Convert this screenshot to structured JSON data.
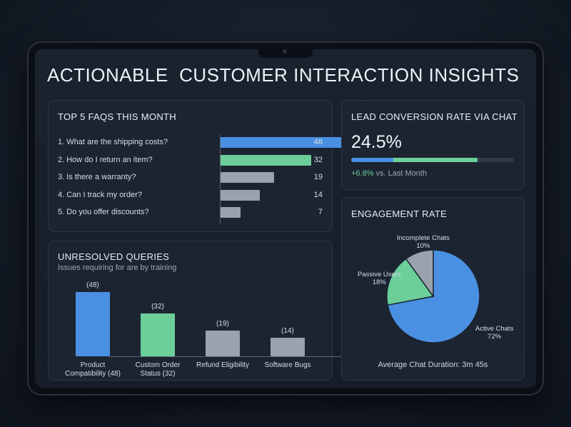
{
  "title": "ACTIONABLE  CUSTOMER INTERACTION INSIGHTS",
  "colors": {
    "blue": "#4a90e2",
    "green": "#6ccf9a",
    "gray": "#9aa3ad",
    "card_bg": "#1c2431"
  },
  "faq": {
    "title": "TOP 5 FAQS THIS MONTH",
    "items": [
      {
        "label": "1.  What are the shipping costs?",
        "value": "48",
        "color": "blue"
      },
      {
        "label": "2.  How do I return an item?",
        "value": "32",
        "color": "green"
      },
      {
        "label": "3.  Is there a warranty?",
        "value": "19",
        "color": "gray"
      },
      {
        "label": "4.  Can I track my order?",
        "value": "14",
        "color": "gray"
      },
      {
        "label": "5.  Do you offer discounts?",
        "value": "7",
        "color": "gray"
      }
    ]
  },
  "lead": {
    "title": "LEAD CONVERSION RATE VIA CHAT",
    "value": "24.5%",
    "change": "+6.8%",
    "change_suffix": " vs. Last Month"
  },
  "unresolved": {
    "title": "UNRESOLVED QUERIES",
    "subtitle": "Issues requiring for are by training",
    "items": [
      {
        "category": "Product\nCompatibility (48)",
        "value_label": "(48)",
        "value": 48,
        "color": "blue"
      },
      {
        "category": "Custom Order\nStatus (32)",
        "value_label": "(32)",
        "value": 32,
        "color": "green"
      },
      {
        "category": "Refund Eligibility",
        "value_label": "(19)",
        "value": 19,
        "color": "gray"
      },
      {
        "category": "Software Bugs",
        "value_label": "(14)",
        "value": 14,
        "color": "gray"
      }
    ]
  },
  "engagement": {
    "title": "ENGAGEMENT RATE",
    "slices": [
      {
        "name": "Active Chats",
        "pct_label": "72%",
        "value": 72,
        "color": "blue"
      },
      {
        "name": "Passive Users",
        "pct_label": "18%",
        "value": 18,
        "color": "green"
      },
      {
        "name": "Incomplete Chats",
        "pct_label": "10%",
        "value": 10,
        "color": "gray"
      }
    ],
    "avg_duration": "Average Chat Duration: 3m 45s"
  },
  "chart_data": [
    {
      "type": "bar",
      "title": "TOP 5 FAQS THIS MONTH",
      "orientation": "horizontal",
      "categories": [
        "What are the shipping costs?",
        "How do I return an item?",
        "Is there a warranty?",
        "Can I track my order?",
        "Do you offer discounts?"
      ],
      "values": [
        48,
        32,
        19,
        14,
        7
      ],
      "xlim": [
        0,
        48
      ]
    },
    {
      "type": "bar",
      "title": "UNRESOLVED QUERIES",
      "categories": [
        "Product Compatibility (48)",
        "Custom Order Status (32)",
        "Refund Eligibility",
        "Software Bugs"
      ],
      "values": [
        48,
        32,
        19,
        14
      ],
      "ylim": [
        0,
        48
      ]
    },
    {
      "type": "pie",
      "title": "ENGAGEMENT RATE",
      "categories": [
        "Active Chats",
        "Passive Users",
        "Incomplete Chats"
      ],
      "values": [
        72,
        18,
        10
      ]
    },
    {
      "type": "bar",
      "title": "LEAD CONVERSION RATE VIA CHAT",
      "values": [
        24.5
      ],
      "progress_fraction": 0.775,
      "progress_blue_fraction": 0.26
    }
  ]
}
